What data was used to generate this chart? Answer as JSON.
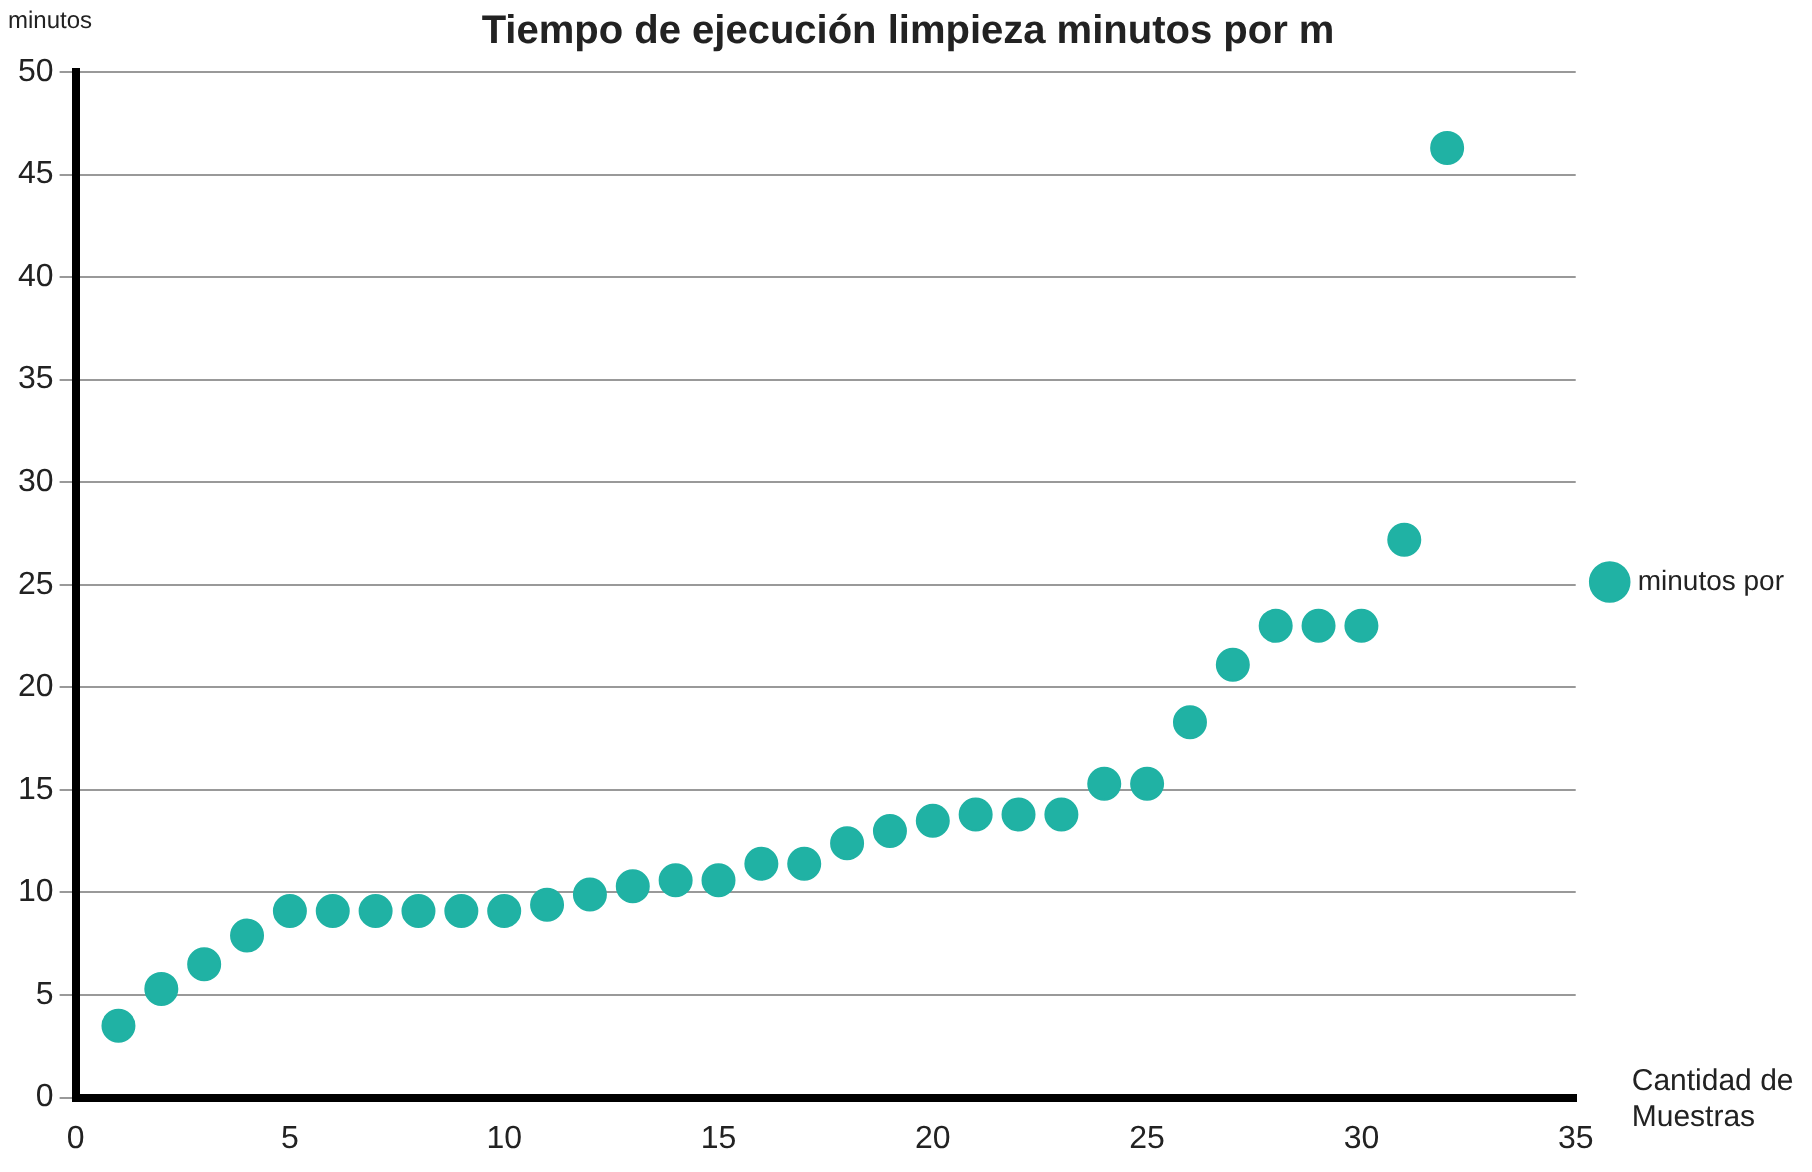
{
  "chart_data": {
    "type": "scatter",
    "title": "Tiempo de ejecución limpieza minutos por m",
    "xlabel": "Cantidad de Muestras",
    "ylabel": "minutos",
    "x": [
      1,
      2,
      3,
      4,
      5,
      6,
      7,
      8,
      9,
      10,
      11,
      12,
      13,
      14,
      15,
      16,
      17,
      18,
      19,
      20,
      21,
      22,
      23,
      24,
      25,
      26,
      27,
      28,
      29,
      30,
      31,
      32
    ],
    "series": [
      {
        "name": "minutos por",
        "color": "#20b2a4",
        "values": [
          3.5,
          5.3,
          6.5,
          7.9,
          9.1,
          9.1,
          9.1,
          9.1,
          9.1,
          9.1,
          9.4,
          9.9,
          10.3,
          10.6,
          10.6,
          11.4,
          11.4,
          12.4,
          13,
          13.5,
          13.8,
          13.8,
          13.8,
          15.3,
          15.3,
          18.3,
          21.1,
          23,
          23,
          23,
          27.2,
          46.3
        ]
      }
    ],
    "xlim": [
      0,
      35
    ],
    "xticks": [
      0,
      5,
      10,
      15,
      20,
      25,
      30,
      35
    ],
    "ylim": [
      0,
      50
    ],
    "yticks": [
      0,
      5,
      10,
      15,
      20,
      25,
      30,
      35,
      40,
      45,
      50
    ],
    "grid": "y",
    "legend": "right",
    "marker": "circle"
  }
}
